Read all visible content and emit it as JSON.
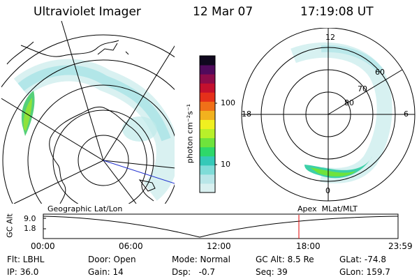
{
  "header": {
    "instrument": "Ultraviolet Imager",
    "date": "12 Mar 07",
    "time": "17:19:08 UT"
  },
  "colorbar": {
    "unit_label": "photon cm⁻²s⁻¹",
    "ticks": [
      "100",
      "10"
    ],
    "colors": [
      "#d9f0f0",
      "#b9e6e8",
      "#7fdcd8",
      "#35c9b8",
      "#2ed86a",
      "#6ee33c",
      "#b8f02a",
      "#f0f020",
      "#f2b21e",
      "#f07018",
      "#e5301a",
      "#c4102e",
      "#8c0c4a",
      "#500a5c",
      "#10081e"
    ]
  },
  "left_map": {
    "title": "Geographic Lat/Lon"
  },
  "right_map": {
    "title": "Apex  MLat/MLT",
    "mlt_labels": {
      "top": "12",
      "left": "18",
      "right": "6",
      "bottom": "0"
    },
    "lat_labels": [
      "60",
      "70",
      "80"
    ]
  },
  "alt_plot": {
    "axis_label": "GC Alt",
    "y_ticks": [
      "9.0",
      "1.8"
    ],
    "x_ticks": [
      "00:00",
      "06:00",
      "12:00",
      "18:00",
      "23:59"
    ],
    "current_marker_color": "#e00000"
  },
  "info": {
    "row1": {
      "filter": "Flt: LBHL",
      "door": "Door: Open",
      "mode": "Mode: Normal",
      "gcalt": "GC Alt: 8.5 Re",
      "glat": "GLat: -74.8"
    },
    "row2": {
      "ip": "IP: 36.0",
      "gain": "Gain: 14",
      "dsp": "Dsp:   -0.7",
      "seq": "Seq: 39",
      "glon": "GLon: 159.7"
    }
  }
}
